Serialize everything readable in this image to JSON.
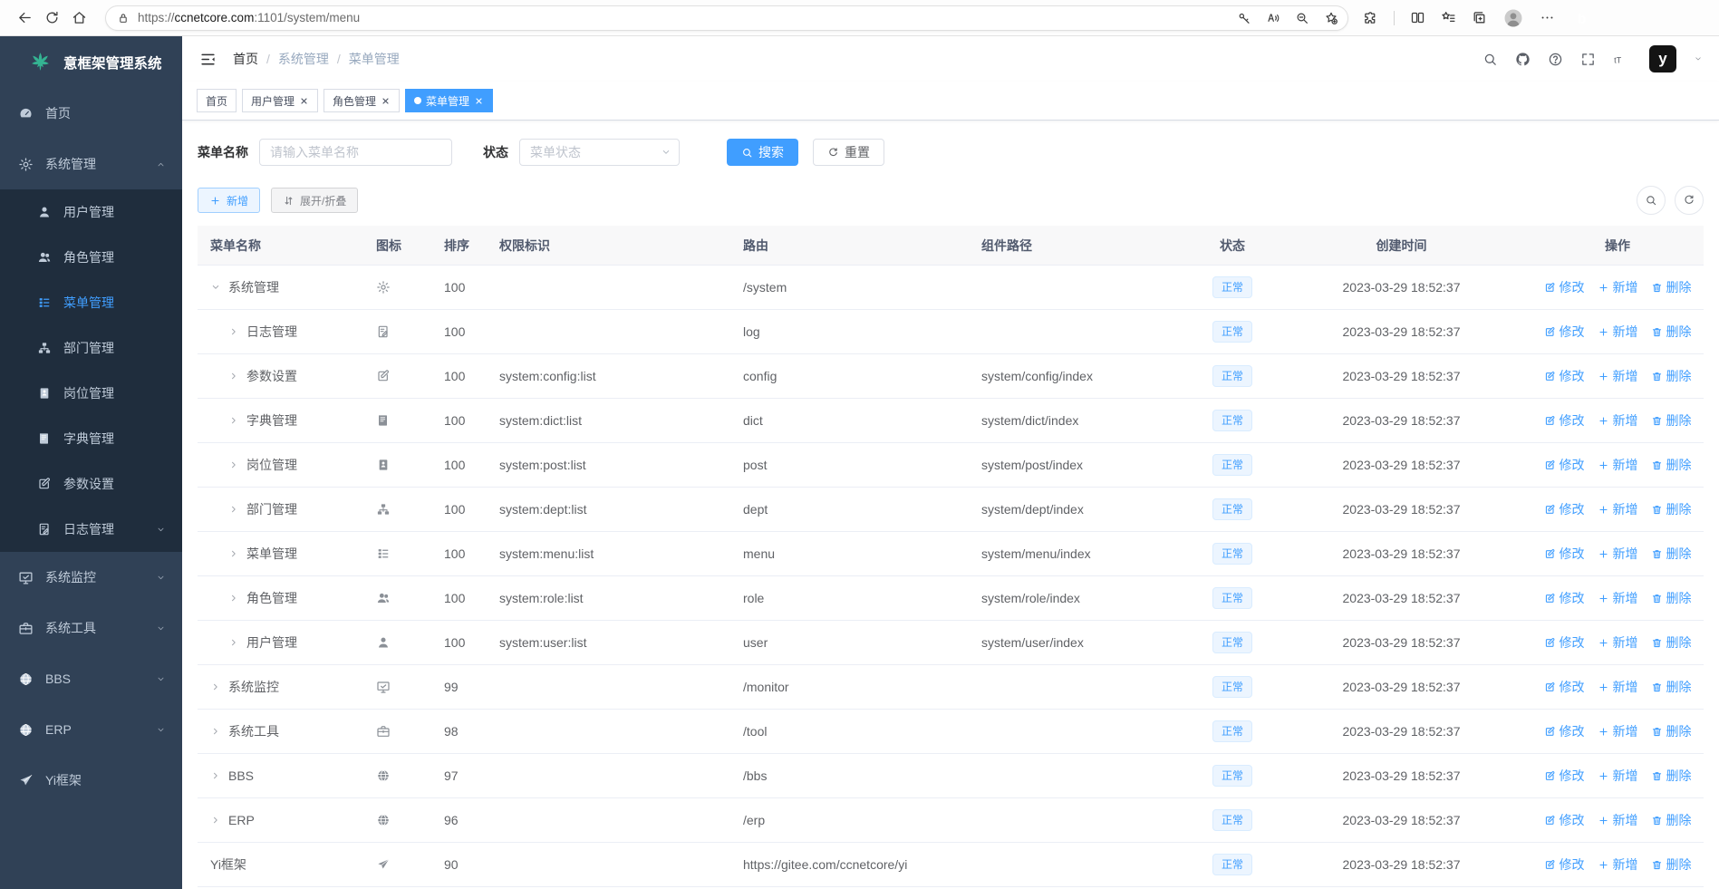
{
  "browser": {
    "url_scheme": "https://",
    "url_domain": "ccnetcore.com",
    "url_rest": ":1101/system/menu"
  },
  "sidebar": {
    "logo_title": "意框架管理系统",
    "menu": [
      {
        "key": "home",
        "label": "首页",
        "icon": "dashboard"
      },
      {
        "key": "system-management",
        "label": "系统管理",
        "icon": "gear",
        "expanded": true,
        "children": [
          {
            "key": "user-management",
            "label": "用户管理",
            "icon": "user"
          },
          {
            "key": "role-management",
            "label": "角色管理",
            "icon": "users"
          },
          {
            "key": "menu-management",
            "label": "菜单管理",
            "icon": "menulist",
            "active": true
          },
          {
            "key": "dept-management",
            "label": "部门管理",
            "icon": "tree"
          },
          {
            "key": "post-management",
            "label": "岗位管理",
            "icon": "badge"
          },
          {
            "key": "dict-management",
            "label": "字典管理",
            "icon": "book"
          },
          {
            "key": "config-settings",
            "label": "参数设置",
            "icon": "edit"
          },
          {
            "key": "log-management",
            "label": "日志管理",
            "icon": "doc",
            "arrow": true
          }
        ]
      },
      {
        "key": "system-monitor",
        "label": "系统监控",
        "icon": "monitor",
        "arrow": true
      },
      {
        "key": "system-tools",
        "label": "系统工具",
        "icon": "briefcase",
        "arrow": true
      },
      {
        "key": "bbs",
        "label": "BBS",
        "icon": "globe",
        "arrow": true
      },
      {
        "key": "erp",
        "label": "ERP",
        "icon": "globe",
        "arrow": true
      },
      {
        "key": "yi-framework",
        "label": "Yi框架",
        "icon": "send"
      }
    ]
  },
  "navbar": {
    "breadcrumb": [
      "首页",
      "系统管理",
      "菜单管理"
    ]
  },
  "tags": [
    {
      "key": "home",
      "label": "首页"
    },
    {
      "key": "user-management",
      "label": "用户管理",
      "closable": true
    },
    {
      "key": "role-management",
      "label": "角色管理",
      "closable": true
    },
    {
      "key": "menu-management",
      "label": "菜单管理",
      "closable": true,
      "active": true
    }
  ],
  "search": {
    "name_label": "菜单名称",
    "name_placeholder": "请输入菜单名称",
    "status_label": "状态",
    "status_placeholder": "菜单状态",
    "search_btn": "搜索",
    "reset_btn": "重置"
  },
  "toolbar": {
    "add": "新增",
    "expand_collapse": "展开/折叠"
  },
  "table": {
    "columns": [
      {
        "key": "name",
        "label": "菜单名称"
      },
      {
        "key": "icon",
        "label": "图标"
      },
      {
        "key": "sort",
        "label": "排序"
      },
      {
        "key": "perm",
        "label": "权限标识"
      },
      {
        "key": "route",
        "label": "路由"
      },
      {
        "key": "component",
        "label": "组件路径"
      },
      {
        "key": "status",
        "label": "状态"
      },
      {
        "key": "created",
        "label": "创建时间"
      },
      {
        "key": "actions",
        "label": "操作"
      }
    ],
    "actions": [
      {
        "key": "edit",
        "label": "修改",
        "icon": "edit"
      },
      {
        "key": "add",
        "label": "新增",
        "icon": "plus"
      },
      {
        "key": "delete",
        "label": "删除",
        "icon": "trash"
      }
    ],
    "rows": [
      {
        "name": "系统管理",
        "level": 0,
        "arrow": "down",
        "icon": "gear",
        "sort": "100",
        "perm": "",
        "route": "/system",
        "component": "",
        "status": "正常",
        "created": "2023-03-29 18:52:37"
      },
      {
        "name": "日志管理",
        "level": 1,
        "arrow": "right",
        "icon": "doc",
        "sort": "100",
        "perm": "",
        "route": "log",
        "component": "",
        "status": "正常",
        "created": "2023-03-29 18:52:37"
      },
      {
        "name": "参数设置",
        "level": 1,
        "arrow": "right",
        "icon": "edit",
        "sort": "100",
        "perm": "system:config:list",
        "route": "config",
        "component": "system/config/index",
        "status": "正常",
        "created": "2023-03-29 18:52:37"
      },
      {
        "name": "字典管理",
        "level": 1,
        "arrow": "right",
        "icon": "book",
        "sort": "100",
        "perm": "system:dict:list",
        "route": "dict",
        "component": "system/dict/index",
        "status": "正常",
        "created": "2023-03-29 18:52:37"
      },
      {
        "name": "岗位管理",
        "level": 1,
        "arrow": "right",
        "icon": "badge",
        "sort": "100",
        "perm": "system:post:list",
        "route": "post",
        "component": "system/post/index",
        "status": "正常",
        "created": "2023-03-29 18:52:37"
      },
      {
        "name": "部门管理",
        "level": 1,
        "arrow": "right",
        "icon": "tree",
        "sort": "100",
        "perm": "system:dept:list",
        "route": "dept",
        "component": "system/dept/index",
        "status": "正常",
        "created": "2023-03-29 18:52:37"
      },
      {
        "name": "菜单管理",
        "level": 1,
        "arrow": "right",
        "icon": "menulist",
        "sort": "100",
        "perm": "system:menu:list",
        "route": "menu",
        "component": "system/menu/index",
        "status": "正常",
        "created": "2023-03-29 18:52:37"
      },
      {
        "name": "角色管理",
        "level": 1,
        "arrow": "right",
        "icon": "users",
        "sort": "100",
        "perm": "system:role:list",
        "route": "role",
        "component": "system/role/index",
        "status": "正常",
        "created": "2023-03-29 18:52:37"
      },
      {
        "name": "用户管理",
        "level": 1,
        "arrow": "right",
        "icon": "user",
        "sort": "100",
        "perm": "system:user:list",
        "route": "user",
        "component": "system/user/index",
        "status": "正常",
        "created": "2023-03-29 18:52:37"
      },
      {
        "name": "系统监控",
        "level": 0,
        "arrow": "right",
        "icon": "monitor",
        "sort": "99",
        "perm": "",
        "route": "/monitor",
        "component": "",
        "status": "正常",
        "created": "2023-03-29 18:52:37"
      },
      {
        "name": "系统工具",
        "level": 0,
        "arrow": "right",
        "icon": "briefcase",
        "sort": "98",
        "perm": "",
        "route": "/tool",
        "component": "",
        "status": "正常",
        "created": "2023-03-29 18:52:37"
      },
      {
        "name": "BBS",
        "level": 0,
        "arrow": "right",
        "icon": "globe",
        "sort": "97",
        "perm": "",
        "route": "/bbs",
        "component": "",
        "status": "正常",
        "created": "2023-03-29 18:52:37"
      },
      {
        "name": "ERP",
        "level": 0,
        "arrow": "right",
        "icon": "globe",
        "sort": "96",
        "perm": "",
        "route": "/erp",
        "component": "",
        "status": "正常",
        "created": "2023-03-29 18:52:37"
      },
      {
        "name": "Yi框架",
        "level": 0,
        "arrow": "none",
        "icon": "send",
        "sort": "90",
        "perm": "",
        "route": "https://gitee.com/ccnetcore/yi",
        "component": "",
        "status": "正常",
        "created": "2023-03-29 18:52:37"
      }
    ]
  }
}
